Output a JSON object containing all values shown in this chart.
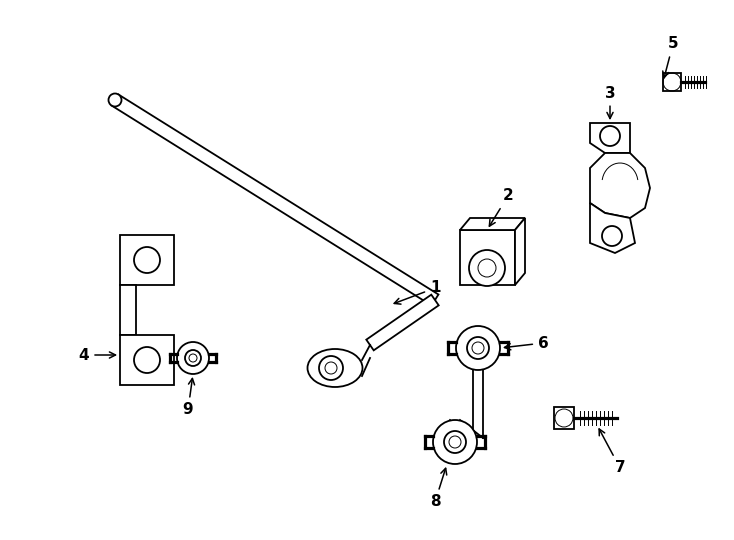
{
  "background_color": "#ffffff",
  "line_color": "#000000",
  "lw": 1.3,
  "tlw": 0.7,
  "fig_width": 7.34,
  "fig_height": 5.4,
  "dpi": 100
}
